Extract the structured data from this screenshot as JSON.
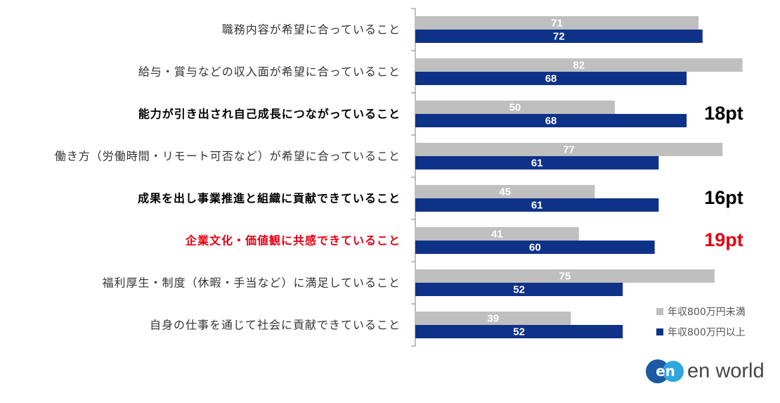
{
  "chart_data": {
    "type": "bar",
    "orientation": "horizontal",
    "categories": [
      "職務内容が希望に合っていること",
      "給与・賞与などの収入面が希望に合っていること",
      "能力が引き出され自己成長につながっていること",
      "働き方（労働時間・リモート可否など）が希望に合っていること",
      "成果を出し事業推進と組織に貢献できていること",
      "企業文化・価値観に共感できていること",
      "福利厚生・制度（休暇・手当など）に満足していること",
      "自身の仕事を通じて社会に貢献できていること"
    ],
    "series": [
      {
        "name": "年収800万円未満",
        "color": "#bfbfbf",
        "values": [
          71,
          82,
          50,
          77,
          45,
          41,
          75,
          39
        ]
      },
      {
        "name": "年収800万円以上",
        "color": "#0f3289",
        "values": [
          72,
          68,
          68,
          61,
          61,
          60,
          52,
          52
        ]
      }
    ],
    "xlim": [
      0,
      90
    ],
    "annotations": [
      {
        "index": 2,
        "text": "18pt",
        "color": "#000000"
      },
      {
        "index": 4,
        "text": "16pt",
        "color": "#000000"
      },
      {
        "index": 5,
        "text": "19pt",
        "color": "#e60012"
      }
    ],
    "legend": "bottom-right"
  },
  "logo": {
    "mark": "en",
    "text": "en world"
  }
}
